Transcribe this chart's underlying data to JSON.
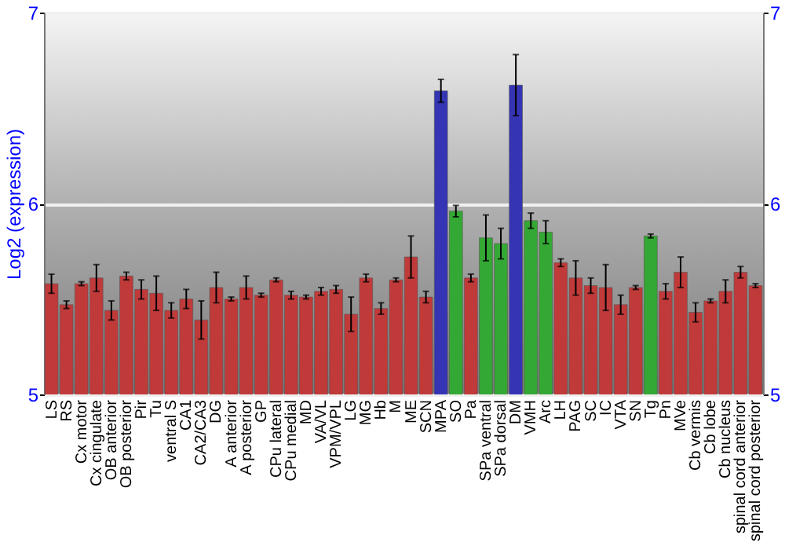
{
  "chart_data": {
    "type": "bar",
    "ylabel": "Log2 (expression)",
    "categories": [
      "LS",
      "RS",
      "Cx motor",
      "Cx cingulate",
      "OB anterior",
      "OB posterior",
      "Pir",
      "Tu",
      "ventral S",
      "CA1",
      "CA2/CA3",
      "DG",
      "A anterior",
      "A posterior",
      "GP",
      "CPu lateral",
      "CPu medial",
      "MD",
      "VA/VL",
      "VPM/VPL",
      "LG",
      "MG",
      "Hb",
      "M",
      "ME",
      "SCN",
      "MPA",
      "SO",
      "Pa",
      "SPa ventral",
      "SPa dorsal",
      "DM",
      "VMH",
      "Arc",
      "LH",
      "PAG",
      "SC",
      "IC",
      "VTA",
      "SN",
      "Tg",
      "Pn",
      "MVe",
      "Cb vermis",
      "Cb lobe",
      "Cb nucleus",
      "spinal cord anterior",
      "spinal cord posterior"
    ],
    "values": [
      5.58,
      5.47,
      5.58,
      5.61,
      5.44,
      5.62,
      5.55,
      5.53,
      5.44,
      5.5,
      5.39,
      5.56,
      5.5,
      5.56,
      5.52,
      5.6,
      5.52,
      5.51,
      5.54,
      5.55,
      5.42,
      5.61,
      5.45,
      5.6,
      5.72,
      5.51,
      6.59,
      5.96,
      5.61,
      5.82,
      5.79,
      6.62,
      5.91,
      5.85,
      5.69,
      5.61,
      5.57,
      5.56,
      5.47,
      5.56,
      5.83,
      5.54,
      5.64,
      5.43,
      5.49,
      5.54,
      5.64,
      5.57
    ],
    "errors": [
      0.05,
      0.02,
      0.01,
      0.07,
      0.05,
      0.02,
      0.05,
      0.09,
      0.04,
      0.05,
      0.1,
      0.08,
      0.01,
      0.06,
      0.01,
      0.01,
      0.02,
      0.01,
      0.02,
      0.02,
      0.09,
      0.02,
      0.03,
      0.01,
      0.11,
      0.03,
      0.06,
      0.03,
      0.02,
      0.12,
      0.08,
      0.16,
      0.04,
      0.06,
      0.02,
      0.09,
      0.04,
      0.12,
      0.05,
      0.01,
      0.01,
      0.04,
      0.08,
      0.05,
      0.01,
      0.06,
      0.03,
      0.01
    ],
    "colors": [
      "#c03a3a",
      "#c03a3a",
      "#c03a3a",
      "#c03a3a",
      "#c03a3a",
      "#c03a3a",
      "#c03a3a",
      "#c03a3a",
      "#c03a3a",
      "#c03a3a",
      "#c03a3a",
      "#c03a3a",
      "#c03a3a",
      "#c03a3a",
      "#c03a3a",
      "#c03a3a",
      "#c03a3a",
      "#c03a3a",
      "#c03a3a",
      "#c03a3a",
      "#c03a3a",
      "#c03a3a",
      "#c03a3a",
      "#c03a3a",
      "#c03a3a",
      "#c03a3a",
      "#3434b4",
      "#34a834",
      "#c03a3a",
      "#34a834",
      "#34a834",
      "#3434b4",
      "#34a834",
      "#34a834",
      "#c03a3a",
      "#c03a3a",
      "#c03a3a",
      "#c03a3a",
      "#c03a3a",
      "#c03a3a",
      "#34a834",
      "#c03a3a",
      "#c03a3a",
      "#c03a3a",
      "#c03a3a",
      "#c03a3a",
      "#c03a3a",
      "#c03a3a"
    ],
    "ylim": [
      5,
      7
    ],
    "yticks": [
      5,
      6,
      7
    ],
    "y2lim": [
      5,
      7
    ],
    "y2ticks": [
      5,
      6,
      7
    ],
    "grid": "y"
  }
}
